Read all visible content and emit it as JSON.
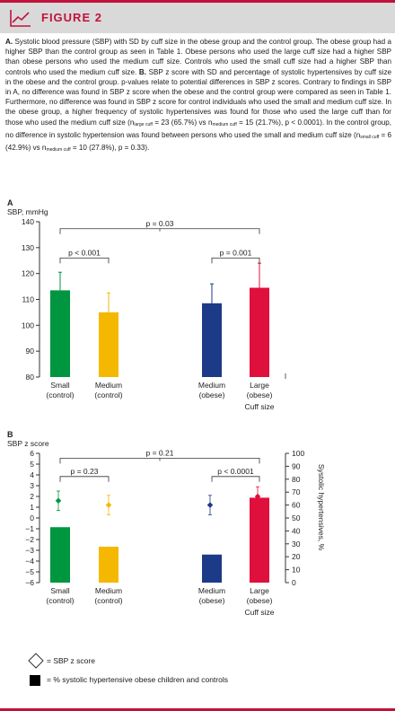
{
  "header": {
    "title": "FIGURE 2"
  },
  "caption": {
    "part_a_label": "A.",
    "part_a_text": "Systolic blood pressure (SBP) with SD by cuff size in the obese group and the control group. The obese group had a higher SBP than the control group as seen in Table 1. Obese persons who used the large cuff size had a higher SBP than obese persons who used the medium cuff size. Controls who used the small cuff size had a higher SBP than controls who used the medium cuff size.",
    "part_b_label": "B.",
    "part_b_text_1": "SBP z score with SD and percentage of systolic hypertensives by cuff size in the obese and the control group. p-values relate to potential differences in SBP z scores. Contrary to findings in SBP in A, no difference was found in SBP z score when the obese and the control group were compared as seen in Table 1. Furthermore, no difference was found in SBP z score for control individuals who used the small and medium cuff size. In the obese group, a higher frequency of systolic hypertensives was found for those who used the large cuff than for those who used the medium cuff size (n",
    "sub_large": "large cuff",
    "part_b_text_2": " = 23 (65.7%) vs n",
    "sub_medium": "medium cuff",
    "part_b_text_3": " = 15 (21.7%), p < 0.0001). In the control group, no difference in systolic hypertension was found between persons who used the small and medium cuff size (n",
    "sub_small": "small cuff",
    "part_b_text_4": " = 6 (42.9%) vs n",
    "part_b_text_5": " = 10 (27.8%), p = 0.33)."
  },
  "chart_data": [
    {
      "type": "bar",
      "panel_label": "A",
      "ylabel": "SBP, mmHg",
      "xlabel": "Cuff size",
      "ylim": [
        80,
        140
      ],
      "yticks": [
        80,
        90,
        100,
        110,
        120,
        130,
        140
      ],
      "categories": [
        {
          "name": "Small",
          "group": "(control)"
        },
        {
          "name": "Medium",
          "group": "(control)"
        },
        {
          "name": "Medium",
          "group": "(obese)"
        },
        {
          "name": "Large",
          "group": "(obese)"
        }
      ],
      "values": [
        113.5,
        105,
        108.5,
        114.5
      ],
      "sd": [
        7,
        7.5,
        7.5,
        9.5
      ],
      "colors": [
        "#00963f",
        "#f5b800",
        "#1c3a87",
        "#e0103c"
      ],
      "brackets": [
        {
          "from": 0,
          "to": 3,
          "label": "p = 0.03"
        },
        {
          "from": 0,
          "to": 1,
          "label": "p < 0.001"
        },
        {
          "from": 2,
          "to": 3,
          "label": "p = 0.001"
        }
      ]
    },
    {
      "type": "bar",
      "panel_label": "B",
      "ylabel": "SBP z score",
      "y2label": "Systolic hypertensives, %",
      "xlabel": "Cuff size",
      "ylim": [
        -6,
        6
      ],
      "yticks": [
        -6,
        -5,
        -4,
        -3,
        -2,
        -1,
        0,
        1,
        2,
        3,
        4,
        5,
        6
      ],
      "ylim2": [
        0,
        100
      ],
      "yticks2": [
        0,
        10,
        20,
        30,
        40,
        50,
        60,
        70,
        80,
        90,
        100
      ],
      "categories": [
        {
          "name": "Small",
          "group": "(control)"
        },
        {
          "name": "Medium",
          "group": "(control)"
        },
        {
          "name": "Medium",
          "group": "(obese)"
        },
        {
          "name": "Large",
          "group": "(obese)"
        }
      ],
      "series": [
        {
          "name": "% systolic hypertensive obese children and controls",
          "axis": "right",
          "values": [
            42.9,
            27.8,
            21.7,
            65.7
          ]
        },
        {
          "name": "SBP z score",
          "axis": "left",
          "values": [
            1.6,
            1.2,
            1.2,
            2.0
          ],
          "sd": [
            0.9,
            0.9,
            0.9,
            0.9
          ]
        }
      ],
      "colors": [
        "#00963f",
        "#f5b800",
        "#1c3a87",
        "#e0103c"
      ],
      "brackets": [
        {
          "from": 0,
          "to": 3,
          "label": "p = 0.21"
        },
        {
          "from": 0,
          "to": 1,
          "label": "p = 0.23"
        },
        {
          "from": 2,
          "to": 3,
          "label": "p < 0.0001"
        }
      ]
    }
  ],
  "legend": {
    "diamond_label": "= SBP z score",
    "square_label": "= % systolic hypertensive obese children and controls"
  }
}
